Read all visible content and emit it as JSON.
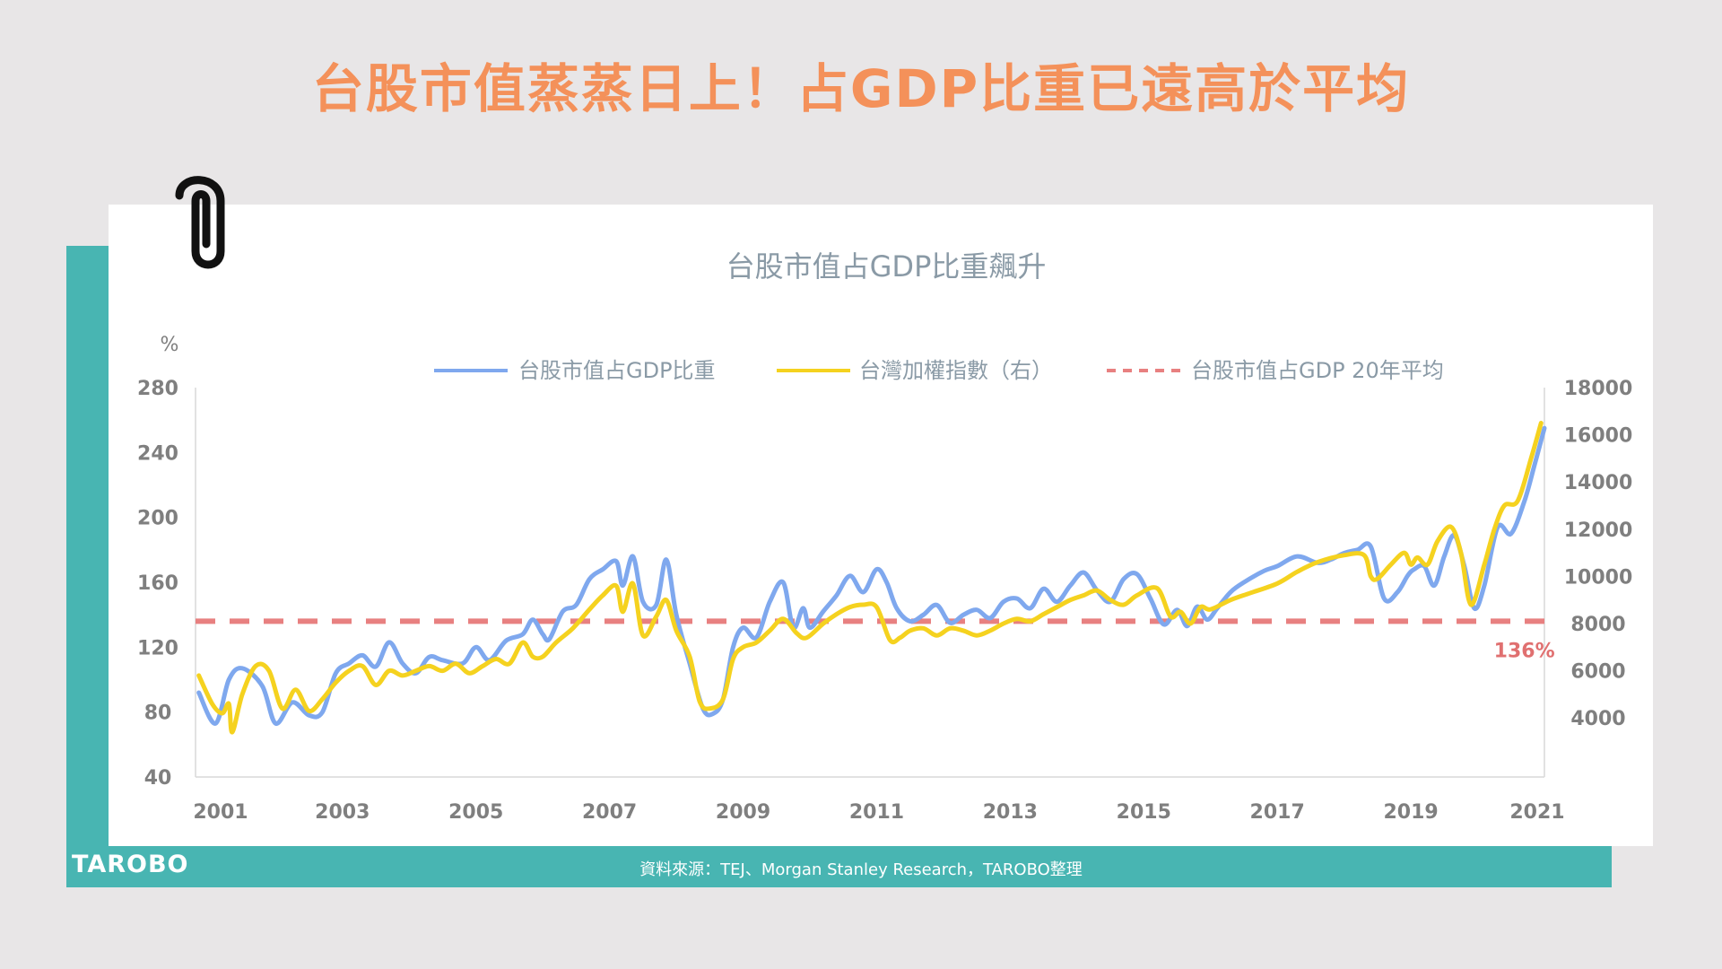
{
  "page": {
    "headline": "台股市值蒸蒸日上！占GDP比重已遠高於平均",
    "brand": "TAROBO",
    "source": "資料來源：TEJ、Morgan Stanley Research，TAROBO整理"
  },
  "colors": {
    "headline": "#f4915a",
    "teal": "#48b5b2",
    "blue": "#7fa8ee",
    "yellow": "#f5d21f",
    "red_dash": "#e88080",
    "axis_text": "#7f7f7f"
  },
  "chart_data": {
    "type": "line",
    "title": "台股市值占GDP比重飆升",
    "ylabel_left": "%",
    "ylim_left": [
      40,
      280
    ],
    "yticks_left": [
      40,
      80,
      120,
      160,
      200,
      240,
      280
    ],
    "ylim_right": [
      1500,
      18000
    ],
    "yticks_right": [
      4000,
      6000,
      8000,
      10000,
      12000,
      14000,
      16000,
      18000
    ],
    "xlim": [
      2000.8,
      2021.0
    ],
    "xticks": [
      2001,
      2003,
      2005,
      2007,
      2009,
      2011,
      2013,
      2015,
      2017,
      2019,
      2021
    ],
    "grid": false,
    "legend_position": "top",
    "annotation": {
      "text": "136%",
      "x": 2020.7,
      "y": 136
    },
    "series": [
      {
        "name": "台股市值占GDP比重",
        "axis": "left",
        "color": "#7fa8ee",
        "x": [
          2000.85,
          2001.1,
          2001.3,
          2001.5,
          2001.8,
          2002.0,
          2002.25,
          2002.5,
          2002.7,
          2002.9,
          2003.1,
          2003.3,
          2003.5,
          2003.7,
          2003.9,
          2004.1,
          2004.3,
          2004.5,
          2004.8,
          2005.0,
          2005.2,
          2005.45,
          2005.7,
          2005.85,
          2006.0,
          2006.1,
          2006.3,
          2006.5,
          2006.7,
          2006.9,
          2007.1,
          2007.2,
          2007.35,
          2007.5,
          2007.7,
          2007.85,
          2008.0,
          2008.2,
          2008.4,
          2008.55,
          2008.7,
          2008.85,
          2009.0,
          2009.2,
          2009.4,
          2009.6,
          2009.75,
          2009.9,
          2010.0,
          2010.2,
          2010.4,
          2010.6,
          2010.8,
          2011.0,
          2011.15,
          2011.3,
          2011.5,
          2011.7,
          2011.9,
          2012.1,
          2012.3,
          2012.5,
          2012.7,
          2012.9,
          2013.1,
          2013.3,
          2013.5,
          2013.7,
          2013.9,
          2014.1,
          2014.3,
          2014.5,
          2014.7,
          2014.9,
          2015.1,
          2015.3,
          2015.5,
          2015.65,
          2015.8,
          2015.95,
          2016.1,
          2016.3,
          2016.5,
          2016.8,
          2017.0,
          2017.3,
          2017.6,
          2017.8,
          2018.0,
          2018.2,
          2018.4,
          2018.6,
          2018.8,
          2018.95,
          2019.05,
          2019.2,
          2019.35,
          2019.5,
          2019.65,
          2019.8,
          2019.95,
          2020.1,
          2020.3,
          2020.5,
          2020.7,
          2020.85,
          2021.0
        ],
        "values": [
          92,
          73,
          100,
          107,
          96,
          73,
          86,
          78,
          80,
          104,
          110,
          115,
          108,
          123,
          110,
          104,
          114,
          112,
          110,
          120,
          112,
          124,
          128,
          137,
          128,
          125,
          142,
          146,
          162,
          168,
          173,
          158,
          176,
          148,
          146,
          174,
          140,
          110,
          82,
          79,
          88,
          120,
          132,
          126,
          148,
          160,
          132,
          144,
          132,
          142,
          152,
          164,
          154,
          168,
          160,
          144,
          136,
          140,
          146,
          135,
          140,
          143,
          138,
          148,
          150,
          144,
          156,
          148,
          158,
          166,
          155,
          148,
          162,
          165,
          150,
          134,
          143,
          133,
          145,
          137,
          144,
          154,
          160,
          167,
          170,
          176,
          172,
          174,
          178,
          180,
          182,
          150,
          154,
          164,
          168,
          170,
          158,
          176,
          189,
          170,
          144,
          158,
          194,
          190,
          210,
          232,
          255
        ]
      },
      {
        "name": "台灣加權指數（右）",
        "axis": "right",
        "color": "#f5d21f",
        "x": [
          2000.85,
          2001.05,
          2001.2,
          2001.3,
          2001.35,
          2001.5,
          2001.7,
          2001.9,
          2002.1,
          2002.3,
          2002.5,
          2002.7,
          2002.9,
          2003.1,
          2003.3,
          2003.5,
          2003.7,
          2003.9,
          2004.1,
          2004.3,
          2004.5,
          2004.7,
          2004.9,
          2005.1,
          2005.3,
          2005.5,
          2005.7,
          2005.85,
          2006.0,
          2006.2,
          2006.45,
          2006.7,
          2006.9,
          2007.1,
          2007.2,
          2007.35,
          2007.5,
          2007.7,
          2007.85,
          2008.0,
          2008.2,
          2008.35,
          2008.5,
          2008.7,
          2008.85,
          2009.0,
          2009.2,
          2009.4,
          2009.6,
          2009.8,
          2009.95,
          2010.2,
          2010.4,
          2010.6,
          2010.8,
          2011.0,
          2011.2,
          2011.35,
          2011.5,
          2011.7,
          2011.9,
          2012.1,
          2012.3,
          2012.5,
          2012.7,
          2012.9,
          2013.1,
          2013.3,
          2013.5,
          2013.7,
          2013.9,
          2014.1,
          2014.3,
          2014.5,
          2014.7,
          2014.9,
          2015.2,
          2015.4,
          2015.55,
          2015.7,
          2015.85,
          2016.0,
          2016.3,
          2016.6,
          2017.0,
          2017.3,
          2017.6,
          2018.0,
          2018.3,
          2018.4,
          2018.5,
          2018.7,
          2018.9,
          2019.0,
          2019.1,
          2019.25,
          2019.4,
          2019.6,
          2019.75,
          2019.9,
          2020.1,
          2020.25,
          2020.4,
          2020.6,
          2020.8,
          2020.95
        ],
        "values": [
          5800,
          4600,
          4200,
          4600,
          3400,
          5000,
          6200,
          6000,
          4400,
          5200,
          4300,
          4800,
          5500,
          6000,
          6200,
          5400,
          6000,
          5800,
          6000,
          6200,
          6000,
          6300,
          5900,
          6200,
          6500,
          6300,
          7200,
          6600,
          6600,
          7200,
          7800,
          8600,
          9200,
          9600,
          8500,
          9700,
          7500,
          8300,
          9000,
          7700,
          6600,
          4700,
          4400,
          4800,
          6500,
          7000,
          7200,
          7700,
          8200,
          7600,
          7400,
          8000,
          8400,
          8700,
          8800,
          8700,
          7300,
          7400,
          7700,
          7800,
          7500,
          7800,
          7700,
          7500,
          7700,
          8000,
          8200,
          8100,
          8400,
          8700,
          9000,
          9200,
          9400,
          9000,
          8800,
          9200,
          9500,
          8300,
          8500,
          8000,
          8700,
          8600,
          9000,
          9300,
          9700,
          10200,
          10600,
          10900,
          10900,
          10000,
          9900,
          10500,
          11000,
          10500,
          10800,
          10500,
          11500,
          12100,
          11000,
          8800,
          10500,
          12000,
          13000,
          13200,
          15000,
          16500
        ]
      },
      {
        "name": "台股市值占GDP 20年平均",
        "axis": "left",
        "color": "#e88080",
        "style": "dashed",
        "x": [
          2000.8,
          2021.0
        ],
        "values": [
          136,
          136
        ]
      }
    ]
  }
}
